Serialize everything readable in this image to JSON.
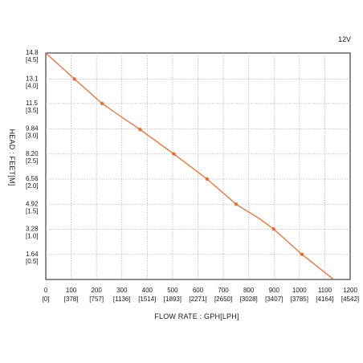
{
  "chart_data": {
    "type": "line",
    "voltage_label": "12V",
    "xlabel": "FLOW RATE : GPH[LPH]",
    "ylabel": "HEAD : FEET[M]",
    "xlim": [
      0,
      1200
    ],
    "ylim": [
      0,
      14.8
    ],
    "grid": true,
    "x_ticks": [
      {
        "value": 0,
        "label": "0",
        "sub": "[0]"
      },
      {
        "value": 100,
        "label": "100",
        "sub": "[378]"
      },
      {
        "value": 200,
        "label": "200",
        "sub": "[757]"
      },
      {
        "value": 300,
        "label": "300",
        "sub": "[1136]"
      },
      {
        "value": 400,
        "label": "400",
        "sub": "[1514]"
      },
      {
        "value": 500,
        "label": "500",
        "sub": "[1893]"
      },
      {
        "value": 600,
        "label": "600",
        "sub": "[2271]"
      },
      {
        "value": 700,
        "label": "700",
        "sub": "[2650]"
      },
      {
        "value": 800,
        "label": "800",
        "sub": "[3028]"
      },
      {
        "value": 900,
        "label": "900",
        "sub": "[3407]"
      },
      {
        "value": 1000,
        "label": "1000",
        "sub": "[3785]"
      },
      {
        "value": 1100,
        "label": "1100",
        "sub": "[4164]"
      },
      {
        "value": 1200,
        "label": "1200",
        "sub": "[4542]"
      }
    ],
    "y_ticks": [
      {
        "value": 14.8,
        "label": "14.8",
        "sub": "[4.5]"
      },
      {
        "value": 13.1,
        "label": "13.1",
        "sub": "[4.0]"
      },
      {
        "value": 11.5,
        "label": "11.5",
        "sub": "[3.5]"
      },
      {
        "value": 9.84,
        "label": "9.84",
        "sub": "[3.0]"
      },
      {
        "value": 8.2,
        "label": "8.20",
        "sub": "[2.5]"
      },
      {
        "value": 6.56,
        "label": "6.56",
        "sub": "[2.0]"
      },
      {
        "value": 4.92,
        "label": "4.92",
        "sub": "[1.5]"
      },
      {
        "value": 3.28,
        "label": "3.28",
        "sub": "[1.0]"
      },
      {
        "value": 1.64,
        "label": "1.64",
        "sub": "[0.5]"
      }
    ],
    "series": [
      {
        "color": "#e0703a",
        "points": [
          [
            0,
            14.8
          ],
          [
            113,
            13.1
          ],
          [
            222,
            11.5
          ],
          [
            300,
            10.6
          ],
          [
            372,
            9.8
          ],
          [
            505,
            8.2
          ],
          [
            636,
            6.56
          ],
          [
            750,
            4.92
          ],
          [
            840,
            4.0
          ],
          [
            898,
            3.3
          ],
          [
            1010,
            1.64
          ],
          [
            1135,
            0
          ]
        ],
        "markers": [
          [
            113,
            13.1
          ],
          [
            222,
            11.5
          ],
          [
            372,
            9.8
          ],
          [
            505,
            8.2
          ],
          [
            636,
            6.56
          ],
          [
            750,
            4.92
          ],
          [
            898,
            3.3
          ],
          [
            1010,
            1.64
          ]
        ]
      }
    ]
  }
}
